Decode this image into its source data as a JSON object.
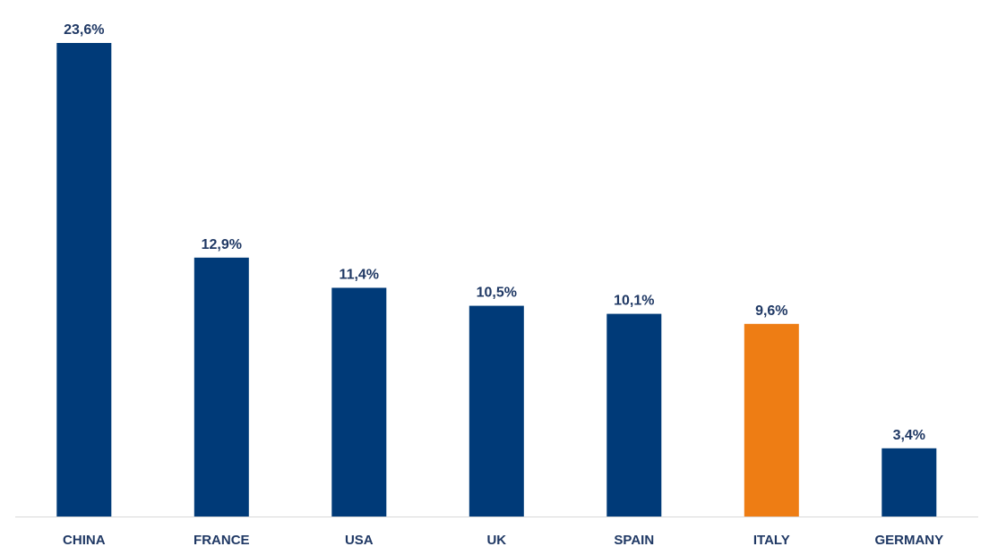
{
  "chart_data": {
    "type": "bar",
    "categories": [
      "CHINA",
      "FRANCE",
      "USA",
      "UK",
      "SPAIN",
      "ITALY",
      "GERMANY"
    ],
    "values": [
      23.6,
      12.9,
      11.4,
      10.5,
      10.1,
      9.6,
      3.4
    ],
    "value_labels": [
      "23,6%",
      "12,9%",
      "11,4%",
      "10,5%",
      "10,1%",
      "9,6%",
      "3,4%"
    ],
    "colors": [
      "#003A78",
      "#003A78",
      "#003A78",
      "#003A78",
      "#003A78",
      "#EE7D14",
      "#003A78"
    ],
    "title": "",
    "xlabel": "",
    "ylabel": "",
    "ylim": [
      0,
      23.6
    ],
    "grid": false,
    "legend": "none"
  },
  "style": {
    "axis_color": "#D9D9D9",
    "label_color": "#1F3864"
  }
}
